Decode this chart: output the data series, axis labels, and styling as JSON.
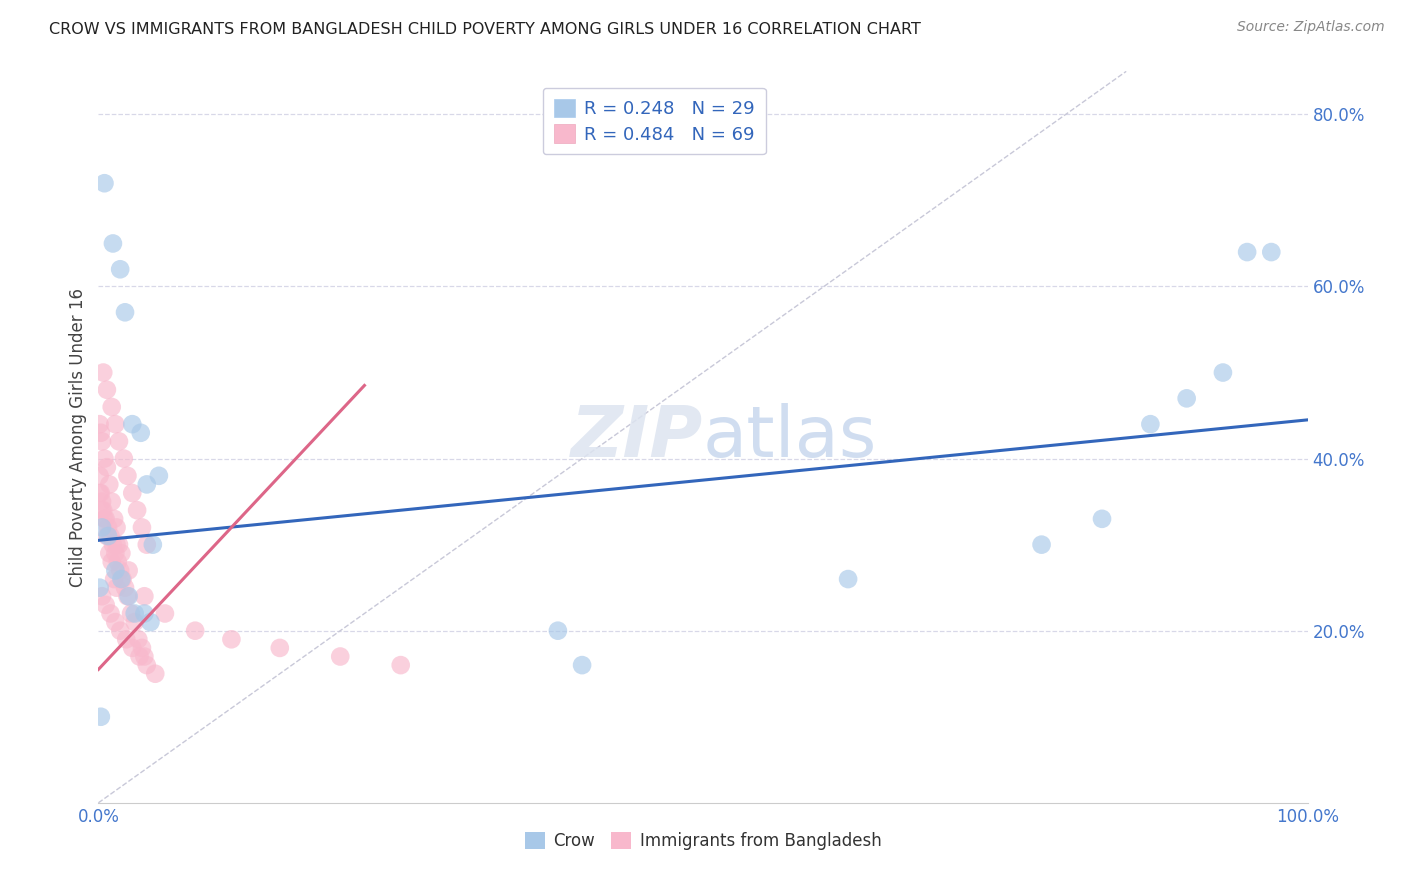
{
  "title": "CROW VS IMMIGRANTS FROM BANGLADESH CHILD POVERTY AMONG GIRLS UNDER 16 CORRELATION CHART",
  "source": "Source: ZipAtlas.com",
  "ylabel": "Child Poverty Among Girls Under 16",
  "xlim": [
    0,
    1.0
  ],
  "ylim": [
    0,
    0.85
  ],
  "crow_color": "#a8c8e8",
  "crow_edge": "#5588cc",
  "bangladesh_color": "#f8b8cc",
  "bangladesh_edge": "#cc6688",
  "crow_trend_color": "#3366bb",
  "bangladesh_trend_color": "#dd6688",
  "grid_color": "#d8d8e8",
  "diagonal_color": "#c8c8d8",
  "background_color": "#ffffff",
  "crow_scatter_x": [
    0.005,
    0.012,
    0.018,
    0.022,
    0.028,
    0.035,
    0.04,
    0.045,
    0.05,
    0.003,
    0.008,
    0.014,
    0.019,
    0.025,
    0.03,
    0.038,
    0.043,
    0.001,
    0.002,
    0.38,
    0.4,
    0.62,
    0.78,
    0.83,
    0.87,
    0.9,
    0.93,
    0.95,
    0.97
  ],
  "crow_scatter_y": [
    0.72,
    0.65,
    0.62,
    0.57,
    0.44,
    0.43,
    0.37,
    0.3,
    0.38,
    0.32,
    0.31,
    0.27,
    0.26,
    0.24,
    0.22,
    0.22,
    0.21,
    0.25,
    0.1,
    0.2,
    0.16,
    0.26,
    0.3,
    0.33,
    0.44,
    0.47,
    0.5,
    0.64,
    0.64
  ],
  "bgd_scatter_x": [
    0.001,
    0.002,
    0.003,
    0.005,
    0.007,
    0.009,
    0.011,
    0.013,
    0.015,
    0.001,
    0.002,
    0.003,
    0.005,
    0.007,
    0.009,
    0.011,
    0.013,
    0.015,
    0.017,
    0.019,
    0.001,
    0.003,
    0.004,
    0.006,
    0.008,
    0.01,
    0.012,
    0.014,
    0.016,
    0.018,
    0.02,
    0.022,
    0.024,
    0.027,
    0.03,
    0.033,
    0.036,
    0.038,
    0.004,
    0.007,
    0.011,
    0.014,
    0.017,
    0.021,
    0.024,
    0.028,
    0.032,
    0.036,
    0.04,
    0.003,
    0.006,
    0.01,
    0.014,
    0.018,
    0.023,
    0.028,
    0.034,
    0.04,
    0.047,
    0.015,
    0.025,
    0.038,
    0.055,
    0.08,
    0.11,
    0.15,
    0.2,
    0.25
  ],
  "bgd_scatter_y": [
    0.38,
    0.36,
    0.34,
    0.33,
    0.31,
    0.29,
    0.28,
    0.26,
    0.25,
    0.44,
    0.43,
    0.42,
    0.4,
    0.39,
    0.37,
    0.35,
    0.33,
    0.32,
    0.3,
    0.29,
    0.36,
    0.35,
    0.34,
    0.33,
    0.32,
    0.31,
    0.3,
    0.29,
    0.28,
    0.27,
    0.26,
    0.25,
    0.24,
    0.22,
    0.21,
    0.19,
    0.18,
    0.17,
    0.5,
    0.48,
    0.46,
    0.44,
    0.42,
    0.4,
    0.38,
    0.36,
    0.34,
    0.32,
    0.3,
    0.24,
    0.23,
    0.22,
    0.21,
    0.2,
    0.19,
    0.18,
    0.17,
    0.16,
    0.15,
    0.3,
    0.27,
    0.24,
    0.22,
    0.2,
    0.19,
    0.18,
    0.17,
    0.16
  ],
  "crow_trend_x": [
    0.0,
    1.0
  ],
  "crow_trend_y": [
    0.305,
    0.445
  ],
  "bgd_trend_x": [
    0.0,
    0.22
  ],
  "bgd_trend_y": [
    0.155,
    0.485
  ]
}
